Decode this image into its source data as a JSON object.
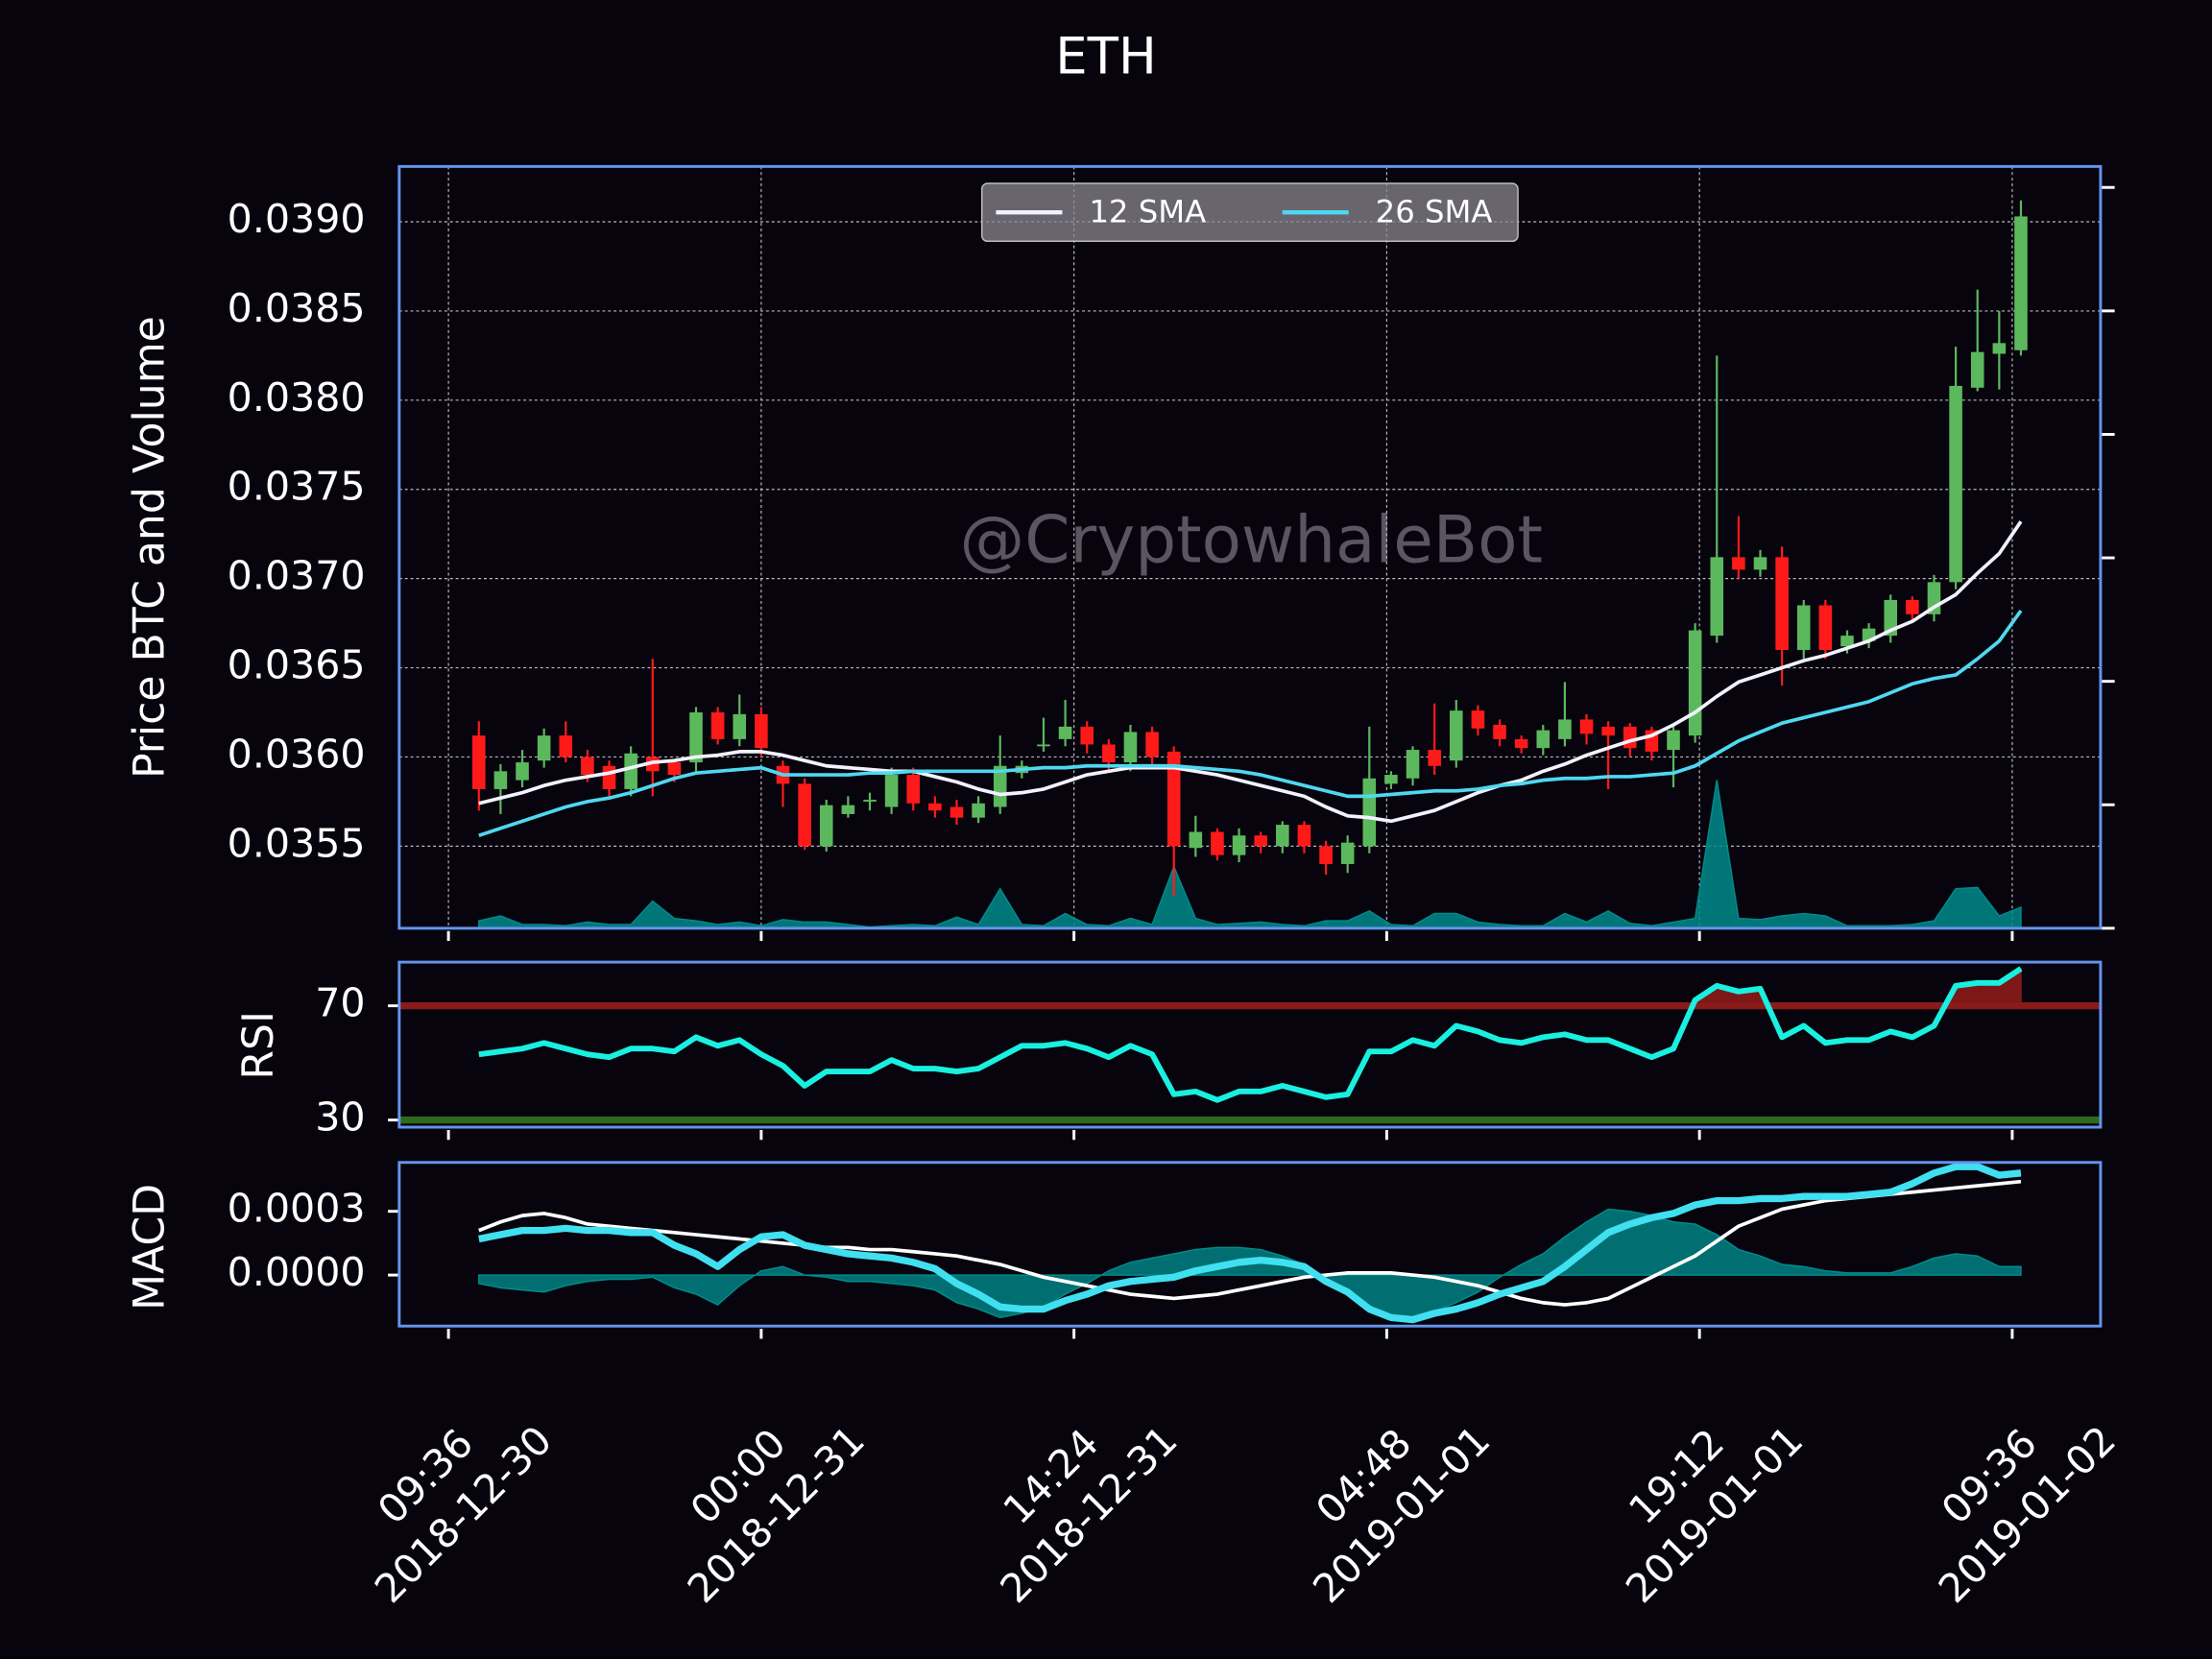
{
  "chart_data": [
    {
      "type": "candlestick",
      "title": "ETH",
      "ylabel": "Price BTC and Volume",
      "watermark": "@CryptowhaleBot",
      "legend": "upper center",
      "grid": true,
      "x": [
        "2018-12-30 11:00",
        "2018-12-30 12:00",
        "2018-12-30 13:00",
        "2018-12-30 14:00",
        "2018-12-30 15:00",
        "2018-12-30 16:00",
        "2018-12-30 17:00",
        "2018-12-30 18:00",
        "2018-12-30 19:00",
        "2018-12-30 20:00",
        "2018-12-30 21:00",
        "2018-12-30 22:00",
        "2018-12-30 23:00",
        "2018-12-31 00:00",
        "2018-12-31 01:00",
        "2018-12-31 02:00",
        "2018-12-31 03:00",
        "2018-12-31 04:00",
        "2018-12-31 05:00",
        "2018-12-31 06:00",
        "2018-12-31 07:00",
        "2018-12-31 08:00",
        "2018-12-31 09:00",
        "2018-12-31 10:00",
        "2018-12-31 11:00",
        "2018-12-31 12:00",
        "2018-12-31 13:00",
        "2018-12-31 14:00",
        "2018-12-31 15:00",
        "2018-12-31 16:00",
        "2018-12-31 17:00",
        "2018-12-31 18:00",
        "2018-12-31 19:00",
        "2018-12-31 20:00",
        "2018-12-31 21:00",
        "2018-12-31 22:00",
        "2018-12-31 23:00",
        "2019-01-01 00:00",
        "2019-01-01 01:00",
        "2019-01-01 02:00",
        "2019-01-01 03:00",
        "2019-01-01 04:00",
        "2019-01-01 05:00",
        "2019-01-01 06:00",
        "2019-01-01 07:00",
        "2019-01-01 08:00",
        "2019-01-01 09:00",
        "2019-01-01 10:00",
        "2019-01-01 11:00",
        "2019-01-01 12:00",
        "2019-01-01 13:00",
        "2019-01-01 14:00",
        "2019-01-01 15:00",
        "2019-01-01 16:00",
        "2019-01-01 17:00",
        "2019-01-01 18:00",
        "2019-01-01 19:00",
        "2019-01-01 20:00",
        "2019-01-01 21:00",
        "2019-01-01 22:00",
        "2019-01-01 23:00",
        "2019-01-02 00:00",
        "2019-01-02 01:00",
        "2019-01-02 02:00",
        "2019-01-02 03:00",
        "2019-01-02 04:00",
        "2019-01-02 05:00",
        "2019-01-02 06:00",
        "2019-01-02 07:00",
        "2019-01-02 08:00",
        "2019-01-02 09:00",
        "2019-01-02 10:00"
      ],
      "open": [
        0.03612,
        0.03582,
        0.03587,
        0.03598,
        0.03612,
        0.036,
        0.03595,
        0.03582,
        0.036,
        0.03597,
        0.03597,
        0.03625,
        0.0361,
        0.03624,
        0.03595,
        0.03585,
        0.0355,
        0.03568,
        0.03575,
        0.03572,
        0.0359,
        0.03574,
        0.03572,
        0.03566,
        0.03572,
        0.03591,
        0.03606,
        0.0361,
        0.03617,
        0.03607,
        0.03597,
        0.03614,
        0.03603,
        0.03549,
        0.03558,
        0.03545,
        0.03556,
        0.0355,
        0.03562,
        0.0355,
        0.0354,
        0.0355,
        0.03585,
        0.03588,
        0.03604,
        0.03598,
        0.03626,
        0.03618,
        0.0361,
        0.03605,
        0.0361,
        0.03621,
        0.03617,
        0.03617,
        0.03615,
        0.03604,
        0.03612,
        0.03668,
        0.03712,
        0.03705,
        0.03712,
        0.0366,
        0.03685,
        0.03662,
        0.03665,
        0.03668,
        0.03688,
        0.0368,
        0.03698,
        0.03807,
        0.03826,
        0.03828
      ],
      "high": [
        0.0362,
        0.03596,
        0.03604,
        0.03616,
        0.0362,
        0.03604,
        0.03598,
        0.03606,
        0.03655,
        0.03598,
        0.03628,
        0.03628,
        0.03635,
        0.03628,
        0.03598,
        0.03588,
        0.03576,
        0.03578,
        0.0358,
        0.03594,
        0.03594,
        0.03578,
        0.03576,
        0.03578,
        0.03612,
        0.03598,
        0.03622,
        0.03632,
        0.0362,
        0.0361,
        0.03618,
        0.03617,
        0.03606,
        0.03567,
        0.0356,
        0.0356,
        0.03558,
        0.03564,
        0.03564,
        0.03553,
        0.03556,
        0.03617,
        0.03592,
        0.03606,
        0.0363,
        0.03632,
        0.03629,
        0.03621,
        0.03612,
        0.03618,
        0.03642,
        0.03624,
        0.0362,
        0.03619,
        0.03617,
        0.03618,
        0.03675,
        0.03825,
        0.03735,
        0.03716,
        0.03718,
        0.03688,
        0.03688,
        0.03671,
        0.03675,
        0.03691,
        0.0369,
        0.03702,
        0.0383,
        0.03862,
        0.0385,
        0.03912
      ],
      "low": [
        0.0357,
        0.03568,
        0.03583,
        0.03594,
        0.03597,
        0.03586,
        0.03578,
        0.03578,
        0.03578,
        0.03586,
        0.03592,
        0.03607,
        0.03606,
        0.036,
        0.03572,
        0.03548,
        0.03547,
        0.03566,
        0.0357,
        0.03568,
        0.0357,
        0.03566,
        0.03562,
        0.03563,
        0.03568,
        0.03588,
        0.03603,
        0.03606,
        0.03602,
        0.03593,
        0.03592,
        0.03596,
        0.03522,
        0.03544,
        0.03542,
        0.03541,
        0.03546,
        0.03546,
        0.03546,
        0.03534,
        0.03535,
        0.03546,
        0.03582,
        0.03584,
        0.0359,
        0.03594,
        0.03612,
        0.03606,
        0.03602,
        0.03601,
        0.03606,
        0.03607,
        0.03582,
        0.036,
        0.03598,
        0.03583,
        0.03608,
        0.03664,
        0.037,
        0.03701,
        0.0364,
        0.03655,
        0.03655,
        0.03658,
        0.03661,
        0.03664,
        0.03676,
        0.03676,
        0.03694,
        0.03805,
        0.03806,
        0.03825
      ],
      "close": [
        0.03582,
        0.03592,
        0.03597,
        0.03612,
        0.036,
        0.0359,
        0.03582,
        0.03602,
        0.03592,
        0.0359,
        0.03625,
        0.0361,
        0.03624,
        0.03605,
        0.03585,
        0.0355,
        0.03573,
        0.03573,
        0.03576,
        0.0359,
        0.03574,
        0.0357,
        0.03566,
        0.03574,
        0.03595,
        0.03595,
        0.03607,
        0.03617,
        0.03607,
        0.03597,
        0.03614,
        0.036,
        0.0355,
        0.03558,
        0.03545,
        0.03556,
        0.0355,
        0.03562,
        0.0355,
        0.0354,
        0.03552,
        0.03588,
        0.0359,
        0.03604,
        0.03595,
        0.03626,
        0.03616,
        0.0361,
        0.03605,
        0.03615,
        0.03621,
        0.03613,
        0.03612,
        0.03605,
        0.03603,
        0.03615,
        0.03671,
        0.03712,
        0.03705,
        0.03712,
        0.0366,
        0.03685,
        0.0366,
        0.03668,
        0.03672,
        0.03688,
        0.0368,
        0.03698,
        0.03808,
        0.03827,
        0.03832,
        0.03903
      ],
      "up_color": "#5cb85c",
      "down_color": "#ff1a1a",
      "series": [
        {
          "name": "12 SMA",
          "color": "#f2f2ff",
          "values": [
            0.03574,
            0.03577,
            0.0358,
            0.03584,
            0.03587,
            0.03589,
            0.03591,
            0.03594,
            0.03597,
            0.03598,
            0.036,
            0.03601,
            0.03603,
            0.03603,
            0.03601,
            0.03598,
            0.03595,
            0.03594,
            0.03593,
            0.03592,
            0.03592,
            0.03589,
            0.03586,
            0.03582,
            0.03579,
            0.0358,
            0.03582,
            0.03586,
            0.0359,
            0.03592,
            0.03594,
            0.03594,
            0.03594,
            0.03592,
            0.0359,
            0.03587,
            0.03584,
            0.03581,
            0.03578,
            0.03572,
            0.03567,
            0.03566,
            0.03564,
            0.03567,
            0.0357,
            0.03575,
            0.0358,
            0.03584,
            0.03587,
            0.03592,
            0.03596,
            0.03601,
            0.03605,
            0.03609,
            0.03612,
            0.03618,
            0.03625,
            0.03634,
            0.03642,
            0.03646,
            0.0365,
            0.03654,
            0.03657,
            0.03661,
            0.03665,
            0.03671,
            0.03676,
            0.03684,
            0.03691,
            0.03703,
            0.03714,
            0.03732
          ]
        },
        {
          "name": "26 SMA",
          "color": "#4fd8f0",
          "values": [
            0.03556,
            0.0356,
            0.03564,
            0.03568,
            0.03572,
            0.03575,
            0.03577,
            0.0358,
            0.03584,
            0.03588,
            0.03591,
            0.03592,
            0.03593,
            0.03594,
            0.0359,
            0.0359,
            0.0359,
            0.0359,
            0.03591,
            0.03591,
            0.03592,
            0.03592,
            0.03592,
            0.03592,
            0.03592,
            0.03593,
            0.03594,
            0.03594,
            0.03595,
            0.03595,
            0.03595,
            0.03595,
            0.03595,
            0.03594,
            0.03593,
            0.03592,
            0.0359,
            0.03587,
            0.03584,
            0.03581,
            0.03578,
            0.03578,
            0.03579,
            0.0358,
            0.03581,
            0.03581,
            0.03582,
            0.03584,
            0.03585,
            0.03587,
            0.03588,
            0.03588,
            0.03589,
            0.03589,
            0.0359,
            0.03591,
            0.03595,
            0.03602,
            0.03609,
            0.03614,
            0.03619,
            0.03622,
            0.03625,
            0.03628,
            0.03631,
            0.03636,
            0.03641,
            0.03644,
            0.03646,
            0.03655,
            0.03665,
            0.03682
          ]
        }
      ],
      "volume": {
        "axis": "y2",
        "color": "#008b8b",
        "values": [
          6,
          10,
          3,
          3,
          2,
          5,
          3,
          3,
          22,
          8,
          6,
          3,
          5,
          2,
          7,
          5,
          5,
          3,
          1,
          2,
          3,
          2,
          9,
          3,
          32,
          3,
          2,
          12,
          3,
          2,
          8,
          3,
          50,
          8,
          3,
          4,
          5,
          3,
          2,
          6,
          6,
          14,
          3,
          2,
          12,
          12,
          5,
          3,
          2,
          2,
          12,
          5,
          14,
          4,
          2,
          5,
          8,
          120,
          8,
          7,
          10,
          12,
          10,
          2,
          2,
          2,
          3,
          6,
          32,
          33,
          10,
          17
        ]
      },
      "xlim": [
        "2018-12-30 07:20",
        "2019-01-02 13:40"
      ],
      "xticks": [
        {
          "value": "2018-12-30 09:36",
          "label": "09:36\n2018-12-30"
        },
        {
          "value": "2018-12-31 00:00",
          "label": "00:00\n2018-12-31"
        },
        {
          "value": "2018-12-31 14:24",
          "label": "14:24\n2018-12-31"
        },
        {
          "value": "2019-01-01 04:48",
          "label": "04:48\n2019-01-01"
        },
        {
          "value": "2019-01-01 19:12",
          "label": "19:12\n2019-01-01"
        },
        {
          "value": "2019-01-02 09:36",
          "label": "09:36\n2019-01-02"
        }
      ],
      "ylim": [
        0.03504,
        0.03931
      ],
      "yticks": [
        0.0355,
        {
          "value": 0.036,
          "label": "0.0360"
        },
        0.0365,
        {
          "value": 0.037,
          "label": "0.0370"
        },
        0.0375,
        {
          "value": 0.038,
          "label": "0.0380"
        },
        0.0385,
        {
          "value": 0.039,
          "label": "0.0390"
        }
      ],
      "y2lim": [
        0,
        617
      ],
      "y2ticks": [
        0,
        100,
        200,
        300,
        400,
        500,
        600
      ]
    },
    {
      "type": "rsi",
      "ylabel": "RSI",
      "color": "#19f0e0",
      "values": [
        53,
        54,
        55,
        57,
        55,
        53,
        52,
        55,
        55,
        54,
        59,
        56,
        58,
        53,
        49,
        42,
        47,
        47,
        47,
        51,
        48,
        48,
        47,
        48,
        52,
        56,
        56,
        57,
        55,
        52,
        56,
        53,
        39,
        40,
        37,
        40,
        40,
        42,
        40,
        38,
        39,
        54,
        54,
        58,
        56,
        63,
        61,
        58,
        57,
        59,
        60,
        58,
        58,
        55,
        52,
        55,
        72,
        77,
        75,
        76,
        59,
        63,
        57,
        58,
        58,
        61,
        59,
        63,
        77,
        78,
        78,
        83
      ],
      "ylim": [
        27.5,
        85.3
      ],
      "yticks": [
        30,
        70
      ],
      "levels": [
        {
          "value": 70,
          "color": "#8b1a1a"
        },
        {
          "value": 30,
          "color": "#2d6a1c"
        }
      ]
    },
    {
      "type": "macd",
      "ylabel": "MACD",
      "macd": {
        "color": "#40e0f0",
        "values": [
          0.00017,
          0.00019,
          0.00021,
          0.00021,
          0.00022,
          0.00021,
          0.00021,
          0.0002,
          0.0002,
          0.00014,
          0.0001,
          4e-05,
          0.00012,
          0.00018,
          0.00019,
          0.00014,
          0.00012,
          0.0001,
          9e-05,
          8e-05,
          6e-05,
          3e-05,
          -4e-05,
          -9e-05,
          -0.00015,
          -0.00016,
          -0.00016,
          -0.00012,
          -9e-05,
          -5e-05,
          -3e-05,
          -2e-05,
          -1e-05,
          2e-05,
          4e-05,
          6e-05,
          7e-05,
          6e-05,
          4e-05,
          -3e-05,
          -8e-05,
          -0.00016,
          -0.0002,
          -0.00021,
          -0.00018,
          -0.00016,
          -0.00013,
          -9e-05,
          -6e-05,
          -3e-05,
          4e-05,
          0.00012,
          0.0002,
          0.00024,
          0.00027,
          0.00029,
          0.00033,
          0.00035,
          0.00035,
          0.00036,
          0.00036,
          0.00037,
          0.00037,
          0.00037,
          0.00038,
          0.00039,
          0.00043,
          0.00048,
          0.00051,
          0.00051,
          0.00047,
          0.00048
        ]
      },
      "signal": {
        "color": "#ffffff",
        "values": [
          0.00021,
          0.00025,
          0.00028,
          0.00029,
          0.00027,
          0.00024,
          0.00023,
          0.00022,
          0.00021,
          0.0002,
          0.00019,
          0.00018,
          0.00017,
          0.00016,
          0.00015,
          0.00014,
          0.00013,
          0.00013,
          0.00012,
          0.00012,
          0.00011,
          0.0001,
          9e-05,
          7e-05,
          5e-05,
          2e-05,
          -1e-05,
          -3e-05,
          -5e-05,
          -7e-05,
          -9e-05,
          -0.0001,
          -0.00011,
          -0.0001,
          -9e-05,
          -7e-05,
          -5e-05,
          -3e-05,
          -1e-05,
          0,
          1e-05,
          1e-05,
          1e-05,
          0,
          -1e-05,
          -3e-05,
          -5e-05,
          -8e-05,
          -0.00011,
          -0.00013,
          -0.00014,
          -0.00013,
          -0.00011,
          -6e-05,
          -1e-05,
          4e-05,
          9e-05,
          0.00016,
          0.00023,
          0.00027,
          0.00031,
          0.00033,
          0.00035,
          0.00036,
          0.00037,
          0.00038,
          0.00039,
          0.0004,
          0.00041,
          0.00042,
          0.00043,
          0.00044
        ]
      },
      "histogram": {
        "color": "#008b8b",
        "values": [
          -4e-05,
          -6e-05,
          -7e-05,
          -8e-05,
          -5e-05,
          -3e-05,
          -2e-05,
          -2e-05,
          -1e-05,
          -6e-05,
          -9e-05,
          -0.00014,
          -5e-05,
          2e-05,
          4e-05,
          0,
          -1e-05,
          -3e-05,
          -3e-05,
          -4e-05,
          -5e-05,
          -7e-05,
          -0.00013,
          -0.00016,
          -0.0002,
          -0.00018,
          -0.00015,
          -9e-05,
          -4e-05,
          2e-05,
          6e-05,
          8e-05,
          0.0001,
          0.00012,
          0.00013,
          0.00013,
          0.00012,
          9e-05,
          5e-05,
          -3e-05,
          -9e-05,
          -0.00017,
          -0.00021,
          -0.00021,
          -0.00017,
          -0.00013,
          -8e-05,
          -1e-05,
          5e-05,
          0.0001,
          0.00018,
          0.00025,
          0.00031,
          0.0003,
          0.00028,
          0.00025,
          0.00024,
          0.00019,
          0.00012,
          9e-05,
          5e-05,
          4e-05,
          2e-05,
          1e-05,
          1e-05,
          1e-05,
          4e-05,
          8e-05,
          0.0001,
          9e-05,
          4e-05,
          4e-05
        ]
      },
      "ylim": [
        -0.00024,
        0.00053
      ],
      "yticks": [
        {
          "value": 0,
          "label": "0.0000"
        },
        0.0003
      ]
    }
  ]
}
